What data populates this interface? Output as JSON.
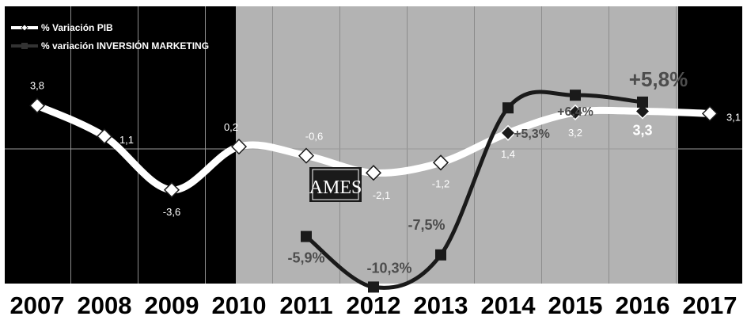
{
  "legend": {
    "pib": "% Variación PIB",
    "marketing": "% variación INVERSIÓN MARKETING"
  },
  "logo_text": "AMES",
  "chart_data": {
    "type": "line",
    "categories": [
      "2007",
      "2008",
      "2009",
      "2010",
      "2011",
      "2012",
      "2013",
      "2014",
      "2015",
      "2016",
      "2017"
    ],
    "series": [
      {
        "name": "% Variación PIB",
        "color": "#ffffff",
        "values": [
          3.8,
          1.1,
          -3.6,
          0.2,
          -0.6,
          -2.1,
          -1.2,
          1.4,
          3.2,
          3.3,
          3.1
        ],
        "labels": [
          "3,8",
          "1,1",
          "-3,6",
          "0,2",
          "-0,6",
          "-2,1",
          "-1,2",
          "1,4",
          "3,2",
          "3,3",
          "3,1"
        ]
      },
      {
        "name": "% variación INVERSIÓN MARKETING",
        "color": "#1a1a1a",
        "values": [
          null,
          null,
          null,
          null,
          -5.9,
          -10.3,
          -7.5,
          5.3,
          6.4,
          5.8,
          null
        ],
        "labels": [
          "",
          "",
          "",
          "",
          "-5,9%",
          "-10,3%",
          "-7,5%",
          "+5,3%",
          "+6,4%",
          "+5,8%",
          ""
        ]
      }
    ],
    "highlight_range": [
      "2010",
      "2016"
    ],
    "colors": {
      "background": "#000000",
      "highlight": "#b3b3b3",
      "pib_line": "#ffffff",
      "marketing_line": "#1a1a1a"
    }
  }
}
